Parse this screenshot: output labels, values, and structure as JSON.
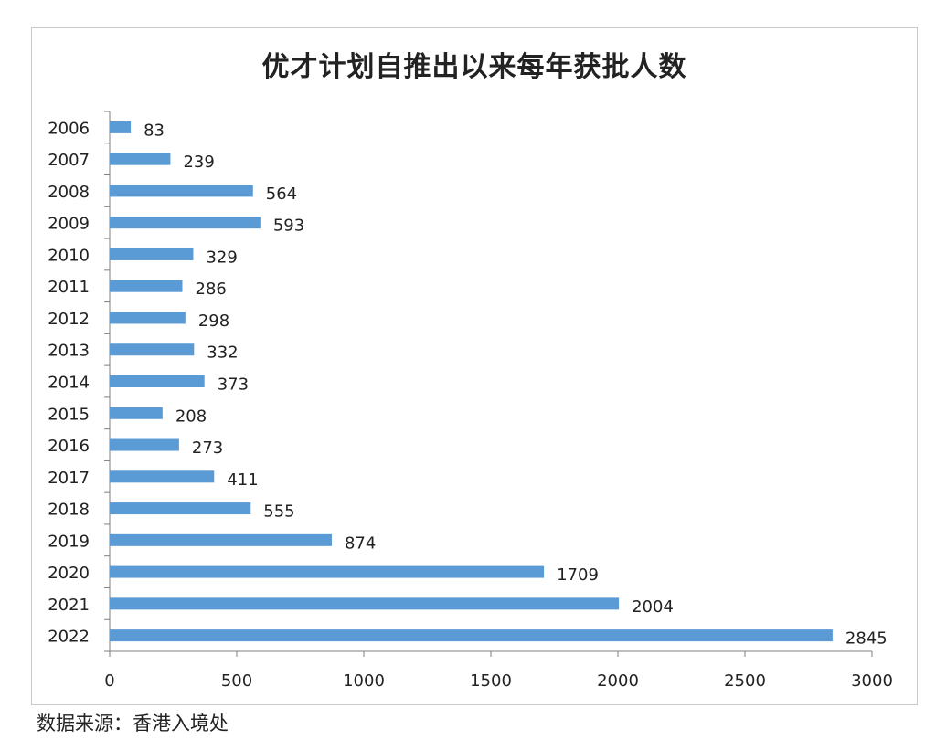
{
  "chart_data": {
    "type": "bar",
    "orientation": "horizontal",
    "title": "优才计划自推出以来每年获批人数",
    "categories": [
      "2006",
      "2007",
      "2008",
      "2009",
      "2010",
      "2011",
      "2012",
      "2013",
      "2014",
      "2015",
      "2016",
      "2017",
      "2018",
      "2019",
      "2020",
      "2021",
      "2022"
    ],
    "values": [
      83,
      239,
      564,
      593,
      329,
      286,
      298,
      332,
      373,
      208,
      273,
      411,
      555,
      874,
      1709,
      2004,
      2845
    ],
    "xlim": [
      0,
      3000
    ],
    "xticks": [
      0,
      500,
      1000,
      1500,
      2000,
      2500,
      3000
    ],
    "grid": false,
    "legend": "none",
    "bar_color": "#5b9bd5"
  },
  "source": "数据来源：香港入境处"
}
